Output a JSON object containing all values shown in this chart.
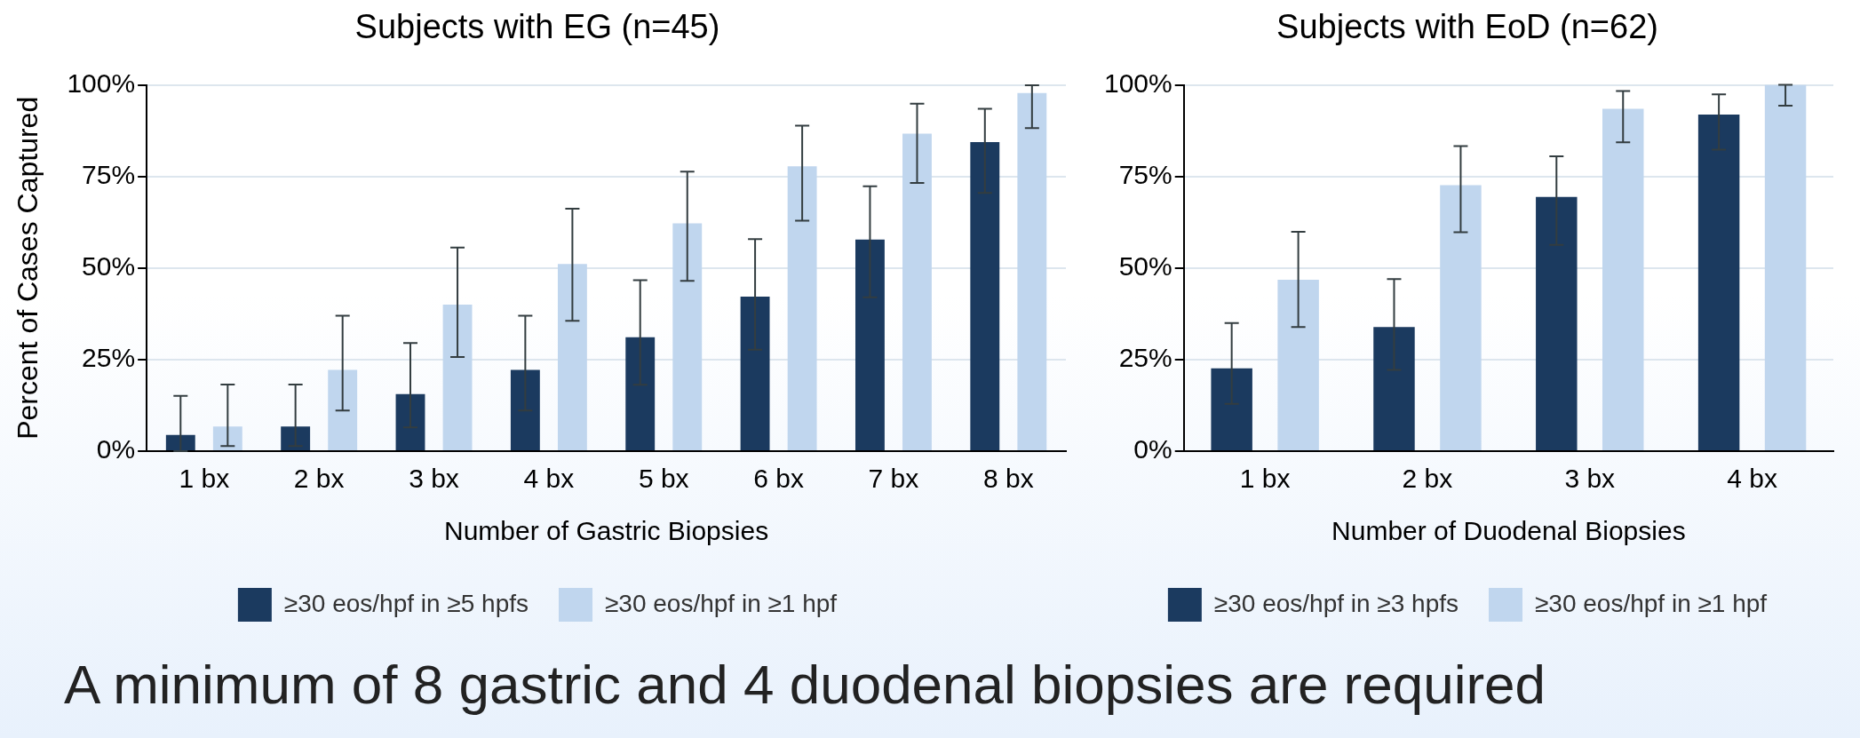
{
  "chart_data": [
    {
      "type": "bar",
      "title": "Subjects with EG (n=45)",
      "xlabel": "Number of Gastric Biopsies",
      "ylabel": "Percent of Cases Captured",
      "categories": [
        "1 bx",
        "2 bx",
        "3 bx",
        "4 bx",
        "5 bx",
        "6 bx",
        "7 bx",
        "8 bx"
      ],
      "series": [
        {
          "name": "≥30 eos/hpf in ≥5 hpfs",
          "color": "#1b3a5f",
          "values": [
            4.4,
            6.7,
            15.6,
            22.2,
            31.1,
            42.2,
            57.8,
            84.4
          ],
          "errors": [
            [
              0,
              15.1
            ],
            [
              1.4,
              18.2
            ],
            [
              6.5,
              29.5
            ],
            [
              11.1,
              37.0
            ],
            [
              18.1,
              46.7
            ],
            [
              27.7,
              57.9
            ],
            [
              42.0,
              72.3
            ],
            [
              70.5,
              93.5
            ]
          ]
        },
        {
          "name": "≥30 eos/hpf in ≥1 hpf",
          "color": "#c0d6ee",
          "values": [
            6.7,
            22.2,
            40.0,
            51.1,
            62.2,
            77.8,
            86.7,
            97.8
          ],
          "errors": [
            [
              1.4,
              18.2
            ],
            [
              11.1,
              37.0
            ],
            [
              25.7,
              55.6
            ],
            [
              35.6,
              66.2
            ],
            [
              46.5,
              76.3
            ],
            [
              62.9,
              88.9
            ],
            [
              73.2,
              94.9
            ],
            [
              88.2,
              99.9
            ]
          ]
        }
      ],
      "ylim": [
        0,
        100
      ],
      "yticks": [
        {
          "value": 0,
          "label": "0%"
        },
        {
          "value": 25,
          "label": "25%"
        },
        {
          "value": 50,
          "label": "50%"
        },
        {
          "value": 75,
          "label": "75%"
        },
        {
          "value": 100,
          "label": "100%"
        }
      ],
      "grid": "y",
      "legend": "bottom",
      "annotations": [
        "A minimum of 8 gastric and 4 duodenal biopsies are required"
      ]
    },
    {
      "type": "bar",
      "title": "Subjects with EoD (n=62)",
      "xlabel": "Number of Duodenal Biopsies",
      "categories": [
        "1 bx",
        "2 bx",
        "3 bx",
        "4 bx"
      ],
      "series": [
        {
          "name": "≥30 eos/hpf in ≥3 hpfs",
          "color": "#1b3a5f",
          "values": [
            22.6,
            33.9,
            69.4,
            91.9
          ],
          "errors": [
            [
              12.9,
              35.0
            ],
            [
              22.2,
              47.0
            ],
            [
              56.3,
              80.5
            ],
            [
              82.3,
              97.4
            ]
          ]
        },
        {
          "name": "≥30 eos/hpf in ≥1 hpf",
          "color": "#c0d6ee",
          "values": [
            46.8,
            72.6,
            93.5,
            100
          ],
          "errors": [
            [
              33.9,
              59.9
            ],
            [
              59.8,
              83.3
            ],
            [
              84.3,
              98.3
            ],
            [
              94.3,
              100
            ]
          ]
        }
      ],
      "ylim": [
        0,
        100
      ],
      "yticks": [
        {
          "value": 0,
          "label": "0%"
        },
        {
          "value": 25,
          "label": "25%"
        },
        {
          "value": 50,
          "label": "50%"
        },
        {
          "value": 75,
          "label": "75%"
        },
        {
          "value": 100,
          "label": "100%"
        }
      ],
      "grid": "y",
      "legend": "bottom"
    }
  ]
}
